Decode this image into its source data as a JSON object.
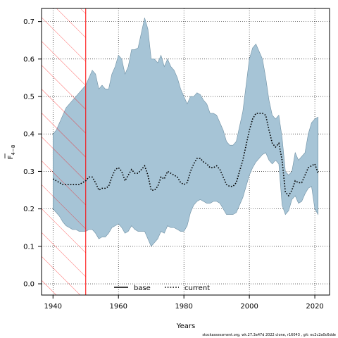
{
  "chart_data": {
    "type": "area",
    "title": "",
    "xlabel": "Years",
    "ylabel_main": "F",
    "ylabel_sub": "4−8",
    "xlim": [
      1936.5,
      2024.5
    ],
    "ylim": [
      -0.03,
      0.735
    ],
    "x_ticks": [
      1940,
      1960,
      1980,
      2000,
      2020
    ],
    "y_ticks": [
      0.0,
      0.1,
      0.2,
      0.3,
      0.4,
      0.5,
      0.6,
      0.7
    ],
    "y_tick_labels": [
      "0.0",
      "0.1",
      "0.2",
      "0.3",
      "0.4",
      "0.5",
      "0.6",
      "0.7"
    ],
    "grid": true,
    "shaded_period": [
      1936.5,
      1950
    ],
    "legend": [
      {
        "name": "base",
        "style": "solid"
      },
      {
        "name": "current",
        "style": "dotted"
      }
    ],
    "band": {
      "color": "#a6c4d6",
      "x": [
        1940,
        1941,
        1942,
        1943,
        1944,
        1945,
        1946,
        1947,
        1948,
        1949,
        1950,
        1951,
        1952,
        1953,
        1954,
        1955,
        1956,
        1957,
        1958,
        1959,
        1960,
        1961,
        1962,
        1963,
        1964,
        1965,
        1966,
        1967,
        1968,
        1969,
        1970,
        1971,
        1972,
        1973,
        1974,
        1975,
        1976,
        1977,
        1978,
        1979,
        1980,
        1981,
        1982,
        1983,
        1984,
        1985,
        1986,
        1987,
        1988,
        1989,
        1990,
        1991,
        1992,
        1993,
        1994,
        1995,
        1996,
        1997,
        1998,
        1999,
        2000,
        2001,
        2002,
        2003,
        2004,
        2005,
        2006,
        2007,
        2008,
        2009,
        2010,
        2011,
        2012,
        2013,
        2014,
        2015,
        2016,
        2017,
        2018,
        2019,
        2020,
        2021
      ],
      "upper": [
        0.4,
        0.41,
        0.43,
        0.45,
        0.47,
        0.48,
        0.49,
        0.5,
        0.51,
        0.52,
        0.53,
        0.55,
        0.57,
        0.56,
        0.52,
        0.53,
        0.52,
        0.52,
        0.56,
        0.58,
        0.61,
        0.6,
        0.56,
        0.58,
        0.625,
        0.625,
        0.63,
        0.67,
        0.71,
        0.68,
        0.6,
        0.6,
        0.59,
        0.61,
        0.58,
        0.6,
        0.58,
        0.57,
        0.55,
        0.52,
        0.5,
        0.48,
        0.5,
        0.5,
        0.51,
        0.505,
        0.49,
        0.48,
        0.455,
        0.455,
        0.45,
        0.43,
        0.41,
        0.38,
        0.37,
        0.37,
        0.38,
        0.42,
        0.46,
        0.53,
        0.6,
        0.63,
        0.64,
        0.62,
        0.6,
        0.55,
        0.49,
        0.45,
        0.44,
        0.45,
        0.39,
        0.3,
        0.29,
        0.3,
        0.35,
        0.33,
        0.34,
        0.35,
        0.4,
        0.43,
        0.44,
        0.445
      ],
      "lower": [
        0.2,
        0.19,
        0.18,
        0.165,
        0.155,
        0.15,
        0.145,
        0.145,
        0.14,
        0.14,
        0.14,
        0.145,
        0.145,
        0.135,
        0.12,
        0.125,
        0.125,
        0.135,
        0.15,
        0.155,
        0.16,
        0.15,
        0.135,
        0.14,
        0.155,
        0.145,
        0.14,
        0.14,
        0.14,
        0.12,
        0.1,
        0.11,
        0.12,
        0.14,
        0.135,
        0.155,
        0.15,
        0.15,
        0.145,
        0.14,
        0.14,
        0.155,
        0.19,
        0.21,
        0.22,
        0.225,
        0.22,
        0.215,
        0.215,
        0.22,
        0.22,
        0.215,
        0.2,
        0.185,
        0.185,
        0.185,
        0.19,
        0.21,
        0.23,
        0.26,
        0.29,
        0.31,
        0.325,
        0.335,
        0.345,
        0.35,
        0.33,
        0.32,
        0.33,
        0.32,
        0.21,
        0.185,
        0.195,
        0.225,
        0.235,
        0.215,
        0.22,
        0.24,
        0.255,
        0.26,
        0.2,
        0.185
      ]
    },
    "series": [
      {
        "name": "current",
        "style": "dotted",
        "x": [
          1940,
          1941,
          1942,
          1943,
          1944,
          1945,
          1946,
          1947,
          1948,
          1949,
          1950,
          1951,
          1952,
          1953,
          1954,
          1955,
          1956,
          1957,
          1958,
          1959,
          1960,
          1961,
          1962,
          1963,
          1964,
          1965,
          1966,
          1967,
          1968,
          1969,
          1970,
          1971,
          1972,
          1973,
          1974,
          1975,
          1976,
          1977,
          1978,
          1979,
          1980,
          1981,
          1982,
          1983,
          1984,
          1985,
          1986,
          1987,
          1988,
          1989,
          1990,
          1991,
          1992,
          1993,
          1994,
          1995,
          1996,
          1997,
          1998,
          1999,
          2000,
          2001,
          2002,
          2003,
          2004,
          2005,
          2006,
          2007,
          2008,
          2009,
          2010,
          2011,
          2012,
          2013,
          2014,
          2015,
          2016,
          2017,
          2018,
          2019,
          2020,
          2021
        ],
        "values": [
          0.28,
          0.275,
          0.27,
          0.265,
          0.265,
          0.265,
          0.265,
          0.265,
          0.265,
          0.27,
          0.275,
          0.285,
          0.285,
          0.27,
          0.25,
          0.255,
          0.255,
          0.26,
          0.285,
          0.305,
          0.31,
          0.3,
          0.275,
          0.29,
          0.305,
          0.295,
          0.295,
          0.305,
          0.315,
          0.29,
          0.25,
          0.25,
          0.26,
          0.285,
          0.28,
          0.3,
          0.295,
          0.29,
          0.285,
          0.27,
          0.265,
          0.27,
          0.3,
          0.32,
          0.335,
          0.335,
          0.325,
          0.32,
          0.31,
          0.31,
          0.315,
          0.305,
          0.285,
          0.265,
          0.26,
          0.26,
          0.27,
          0.3,
          0.33,
          0.37,
          0.41,
          0.44,
          0.455,
          0.455,
          0.455,
          0.45,
          0.41,
          0.375,
          0.365,
          0.375,
          0.33,
          0.245,
          0.235,
          0.25,
          0.275,
          0.27,
          0.27,
          0.29,
          0.31,
          0.315,
          0.32,
          0.295
        ]
      }
    ]
  },
  "footer": "stockassessment.org, wk.27.3a47d 2022 clone, r16043 , git: ec2c2a0c6dde"
}
